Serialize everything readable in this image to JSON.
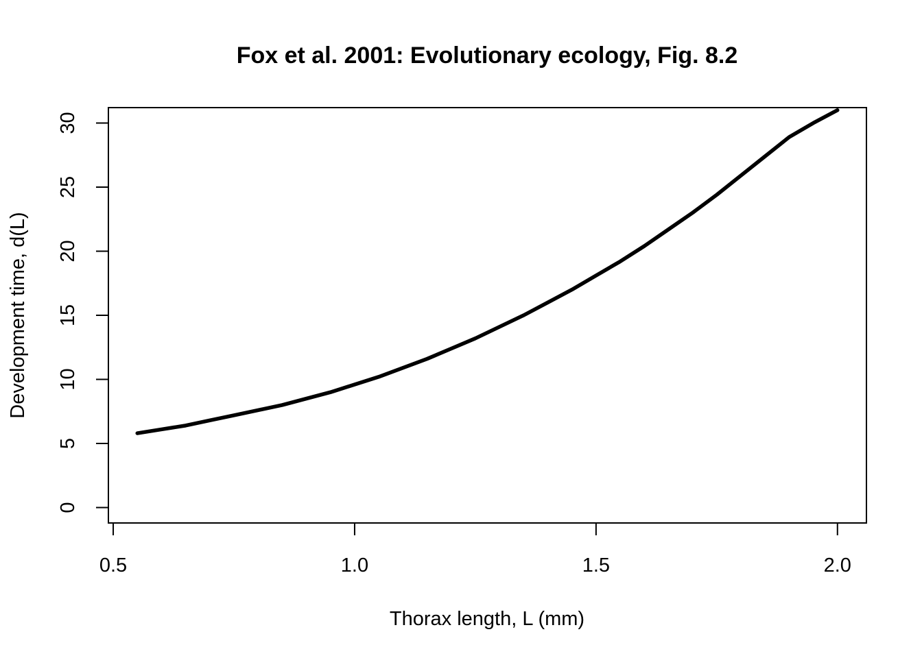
{
  "chart_data": {
    "type": "line",
    "title": "Fox et al. 2001: Evolutionary ecology, Fig. 8.2",
    "xlabel": "Thorax length, L (mm)",
    "ylabel": "Development time, d(L)",
    "xlim": [
      0.49,
      2.06
    ],
    "ylim": [
      -1.2,
      31.2
    ],
    "xticks": [
      0.5,
      1.0,
      1.5,
      2.0
    ],
    "xtick_labels": [
      "0.5",
      "1.0",
      "1.5",
      "2.0"
    ],
    "yticks": [
      0,
      5,
      10,
      15,
      20,
      25,
      30
    ],
    "ytick_labels": [
      "0",
      "5",
      "10",
      "15",
      "20",
      "25",
      "30"
    ],
    "grid": false,
    "legend": "none",
    "series": [
      {
        "color": "#000000",
        "x": [
          0.55,
          0.6,
          0.65,
          0.7,
          0.75,
          0.8,
          0.85,
          0.9,
          0.95,
          1.0,
          1.05,
          1.1,
          1.15,
          1.2,
          1.25,
          1.3,
          1.35,
          1.4,
          1.45,
          1.5,
          1.55,
          1.6,
          1.65,
          1.7,
          1.75,
          1.8,
          1.85,
          1.9,
          1.95,
          2.0
        ],
        "y": [
          5.8,
          6.1,
          6.4,
          6.8,
          7.2,
          7.6,
          8.0,
          8.5,
          9.0,
          9.6,
          10.2,
          10.9,
          11.6,
          12.4,
          13.2,
          14.1,
          15.0,
          16.0,
          17.0,
          18.1,
          19.2,
          20.4,
          21.7,
          23.0,
          24.4,
          25.9,
          27.4,
          28.9,
          30.0,
          31.0
        ]
      }
    ]
  }
}
